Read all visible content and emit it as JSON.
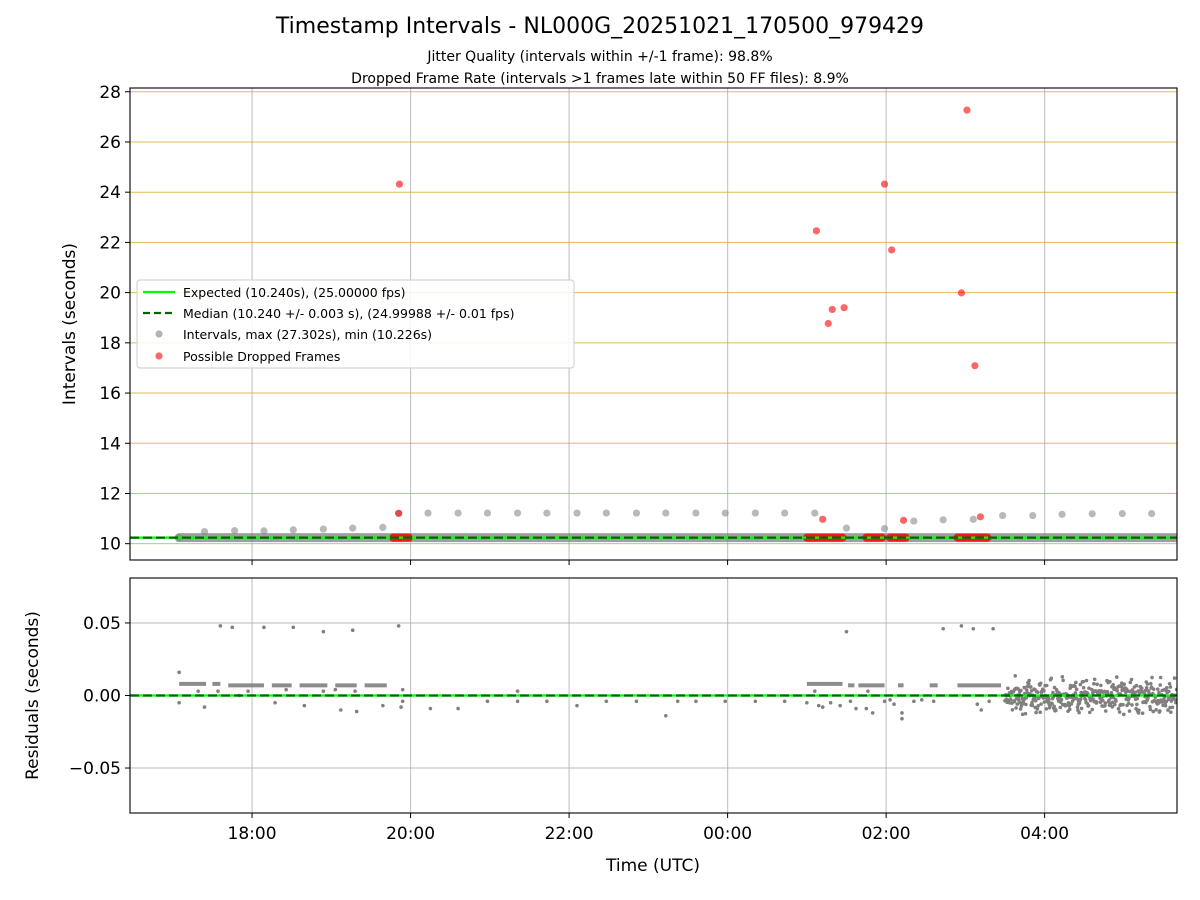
{
  "title": "Timestamp Intervals - NL000G_20251021_170500_979429",
  "subtitle_1": "Jitter Quality (intervals within +/-1 frame): 98.8%",
  "subtitle_2": "Dropped Frame Rate (intervals >1 frames late within 50 FF files): 8.9%",
  "colors": {
    "expected": "#00ff00",
    "median": "#006400",
    "intervals": "#808080",
    "dropped": "#ff0000",
    "gold_grid": "#daa520",
    "grid": "#b0b0b0"
  },
  "chart_data": [
    {
      "type": "scatter",
      "panel": "top",
      "xlabel": "",
      "ylabel": "Intervals (seconds)",
      "xlim_hours": [
        16.46,
        29.67
      ],
      "ylim": [
        9.35,
        28.15
      ],
      "y_ticks": [
        10,
        12,
        14,
        16,
        18,
        20,
        22,
        24,
        26,
        28
      ],
      "y_tick_labels": [
        "10",
        "12",
        "14",
        "16",
        "18",
        "20",
        "22",
        "24",
        "26",
        "28"
      ],
      "x_ticks_hours": [
        18,
        20,
        22,
        24,
        26,
        28
      ],
      "grid": "x grid grey, horizontal gold lines at even seconds",
      "legend_placement": "center-left",
      "legend": [
        "Expected (10.240s), (25.00000 fps)",
        "Median (10.240 +/- 0.003 s), (24.99988 +/- 0.01 fps)",
        "Intervals, max (27.302s), min (10.226s)",
        "Possible Dropped Frames"
      ],
      "reference_lines": {
        "expected": 10.24,
        "median": 10.24
      },
      "baseline_band": {
        "y": 10.24,
        "x_start_hours": 17.08,
        "x_end_hours": 29.67
      },
      "intervals_series": {
        "x_hours": [
          17.08,
          17.4,
          17.78,
          18.15,
          18.52,
          18.9,
          19.27,
          19.65,
          19.85,
          20.22,
          20.6,
          20.97,
          21.35,
          21.72,
          22.1,
          22.47,
          22.85,
          23.22,
          23.6,
          23.97,
          24.35,
          24.72,
          25.1,
          25.5,
          25.98,
          26.35,
          26.72,
          27.1,
          27.47,
          27.85,
          28.22,
          28.6,
          28.98,
          29.35
        ],
        "y": [
          10.24,
          10.48,
          10.52,
          10.51,
          10.55,
          10.58,
          10.62,
          10.65,
          11.21,
          11.22,
          11.22,
          11.22,
          11.22,
          11.22,
          11.22,
          11.22,
          11.22,
          11.22,
          11.22,
          11.22,
          11.22,
          11.22,
          11.22,
          10.62,
          10.6,
          10.9,
          10.95,
          10.97,
          11.12,
          11.12,
          11.17,
          11.19,
          11.2,
          11.2
        ]
      },
      "dropped_series": {
        "x_hours": [
          19.86,
          25.98,
          25.12,
          25.32,
          25.27,
          25.47,
          26.07,
          26.22,
          26.95,
          27.02,
          27.12,
          27.19,
          25.2
        ],
        "y": [
          24.32,
          24.32,
          22.46,
          19.33,
          18.77,
          19.4,
          21.7,
          10.93,
          19.99,
          27.27,
          17.09,
          11.07,
          10.97
        ]
      },
      "dropped_clusters": [
        {
          "x_start_hours": 19.78,
          "x_end_hours": 19.98,
          "y": 10.24
        },
        {
          "x_start_hours": 25.0,
          "x_end_hours": 25.45,
          "y": 10.24
        },
        {
          "x_start_hours": 25.75,
          "x_end_hours": 25.95,
          "y": 10.24
        },
        {
          "x_start_hours": 26.05,
          "x_end_hours": 26.25,
          "y": 10.24
        },
        {
          "x_start_hours": 26.9,
          "x_end_hours": 27.28,
          "y": 10.24
        }
      ],
      "dropped_extra": {
        "x_hours": [
          19.85
        ],
        "y": [
          11.21
        ]
      }
    },
    {
      "type": "scatter",
      "panel": "bottom",
      "xlabel": "Time (UTC)",
      "ylabel": "Residuals (seconds)",
      "xlim_hours": [
        16.46,
        29.67
      ],
      "ylim": [
        -0.081,
        0.081
      ],
      "y_ticks": [
        -0.05,
        0,
        0.05
      ],
      "y_tick_labels": [
        "−0.05",
        "0.00",
        "0.05"
      ],
      "x_ticks_hours": [
        18,
        20,
        22,
        24,
        26,
        28
      ],
      "x_tick_labels": [
        "18:00",
        "20:00",
        "22:00",
        "00:00",
        "02:00",
        "04:00"
      ],
      "reference_lines": {
        "expected": 0,
        "median": 0
      },
      "band_segments": [
        {
          "x_start_hours": 17.08,
          "x_end_hours": 17.42,
          "y": 0.008
        },
        {
          "x_start_hours": 17.5,
          "x_end_hours": 17.6,
          "y": 0.008
        },
        {
          "x_start_hours": 17.7,
          "x_end_hours": 18.15,
          "y": 0.007
        },
        {
          "x_start_hours": 18.25,
          "x_end_hours": 18.5,
          "y": 0.007
        },
        {
          "x_start_hours": 18.6,
          "x_end_hours": 18.95,
          "y": 0.007
        },
        {
          "x_start_hours": 19.05,
          "x_end_hours": 19.32,
          "y": 0.007
        },
        {
          "x_start_hours": 19.42,
          "x_end_hours": 19.7,
          "y": 0.007
        },
        {
          "x_start_hours": 25.0,
          "x_end_hours": 25.45,
          "y": 0.008
        },
        {
          "x_start_hours": 25.52,
          "x_end_hours": 25.6,
          "y": 0.007
        },
        {
          "x_start_hours": 25.65,
          "x_end_hours": 25.98,
          "y": 0.007
        },
        {
          "x_start_hours": 26.15,
          "x_end_hours": 26.22,
          "y": 0.007
        },
        {
          "x_start_hours": 26.55,
          "x_end_hours": 26.65,
          "y": 0.007
        },
        {
          "x_start_hours": 26.9,
          "x_end_hours": 27.45,
          "y": 0.007
        }
      ],
      "scatter_points": {
        "x_hours": [
          17.08,
          17.08,
          17.4,
          17.6,
          17.75,
          17.84,
          18.15,
          18.29,
          18.52,
          18.66,
          18.9,
          19.12,
          19.27,
          19.32,
          19.65,
          19.85,
          19.88,
          19.9,
          20.25,
          20.6,
          20.97,
          21.35,
          21.72,
          22.1,
          22.47,
          22.85,
          23.22,
          23.6,
          23.97,
          24.35,
          24.72,
          25.1,
          25.15,
          25.3,
          25.42,
          25.5,
          25.55,
          25.75,
          25.83,
          25.98,
          26.1,
          26.2,
          26.35,
          26.72,
          26.95,
          27.1,
          27.15,
          27.2,
          27.3,
          27.35,
          23.37,
          17.57,
          18.43,
          17.95,
          19.05,
          19.3,
          19.9,
          17.32,
          18.9,
          21.35,
          25.0,
          25.2,
          25.62,
          25.77,
          26.05,
          26.2,
          26.45,
          26.6
        ],
        "y": [
          0.016,
          -0.005,
          -0.008,
          0.048,
          0.047,
          0.0,
          0.047,
          -0.005,
          0.047,
          -0.007,
          0.044,
          -0.01,
          0.045,
          -0.011,
          -0.007,
          0.048,
          -0.008,
          -0.004,
          -0.009,
          -0.009,
          -0.004,
          -0.004,
          -0.004,
          -0.007,
          -0.004,
          -0.004,
          -0.014,
          -0.004,
          -0.004,
          -0.004,
          -0.004,
          0.003,
          -0.007,
          -0.005,
          -0.007,
          0.044,
          -0.004,
          -0.009,
          -0.012,
          -0.004,
          -0.006,
          -0.016,
          -0.004,
          0.046,
          0.048,
          0.046,
          -0.006,
          -0.01,
          -0.004,
          0.046,
          -0.004,
          0.003,
          0.004,
          0.003,
          0.004,
          0.003,
          0.004,
          0.003,
          0.003,
          0.003,
          -0.005,
          -0.008,
          -0.009,
          0.003,
          -0.003,
          -0.012,
          -0.003,
          -0.004
        ]
      },
      "noise_region": {
        "x_start_hours": 27.5,
        "x_end_hours": 29.67,
        "amplitude": 0.012
      }
    }
  ]
}
